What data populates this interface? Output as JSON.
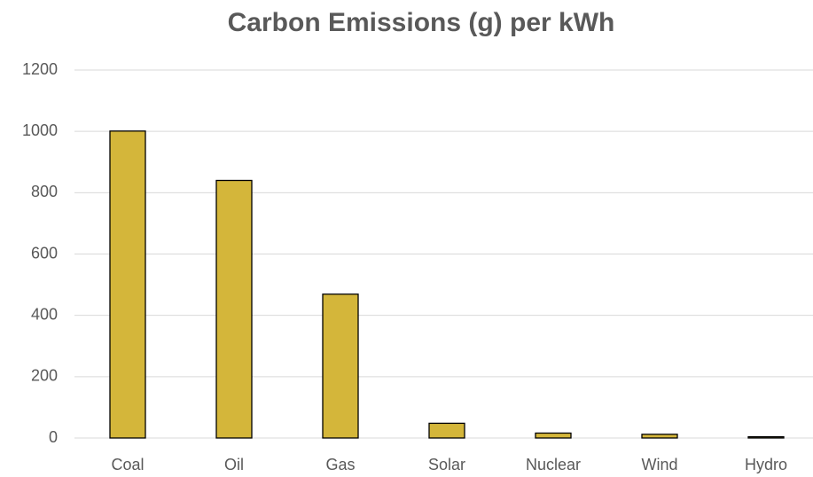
{
  "chart_data": {
    "type": "bar",
    "title": "Carbon Emissions (g) per kWh",
    "categories": [
      "Coal",
      "Oil",
      "Gas",
      "Solar",
      "Nuclear",
      "Wind",
      "Hydro"
    ],
    "values": [
      1001,
      840,
      469,
      48,
      16,
      12,
      4
    ],
    "color": "#d4b63a",
    "ylim": [
      0,
      1200
    ],
    "yticks": [
      0,
      200,
      400,
      600,
      800,
      1000,
      1200
    ],
    "grid": true
  }
}
